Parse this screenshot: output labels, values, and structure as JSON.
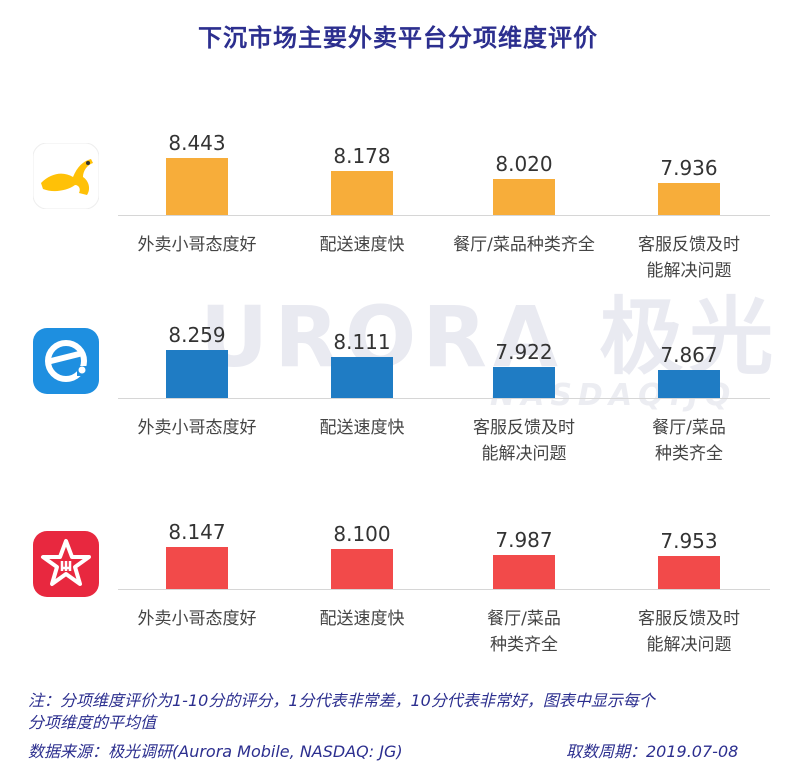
{
  "title": "下沉市场主要外卖平台分项维度评价",
  "watermark": {
    "main": "URORA 极光",
    "sub": "NASDAQ:JQ"
  },
  "logos": [
    {
      "icon": "kangaroo-icon",
      "color": "#ffc107"
    },
    {
      "icon": "e-icon",
      "color": "#1e8fe0"
    },
    {
      "icon": "star-fork-icon",
      "color": "#e8283f"
    }
  ],
  "chart_data": [
    {
      "type": "bar",
      "platform_icon": "kangaroo-icon",
      "color": "#f7ad3a",
      "categories": [
        "外卖小哥态度好",
        "配送速度快",
        "餐厅/菜品种类齐全",
        "客服反馈及时能解决问题"
      ],
      "category_lines": [
        [
          "外卖小哥态度好"
        ],
        [
          "配送速度快"
        ],
        [
          "餐厅/菜品种类齐全"
        ],
        [
          "客服反馈及时",
          "能解决问题"
        ]
      ],
      "values": [
        8.443,
        8.178,
        8.02,
        7.936
      ],
      "value_labels": [
        "8.443",
        "8.178",
        "8.020",
        "7.936"
      ]
    },
    {
      "type": "bar",
      "platform_icon": "e-icon",
      "color": "#1f7cc4",
      "categories": [
        "外卖小哥态度好",
        "配送速度快",
        "客服反馈及时能解决问题",
        "餐厅/菜品种类齐全"
      ],
      "category_lines": [
        [
          "外卖小哥态度好"
        ],
        [
          "配送速度快"
        ],
        [
          "客服反馈及时",
          "能解决问题"
        ],
        [
          "餐厅/菜品",
          "种类齐全"
        ]
      ],
      "values": [
        8.259,
        8.111,
        7.922,
        7.867
      ],
      "value_labels": [
        "8.259",
        "8.111",
        "7.922",
        "7.867"
      ]
    },
    {
      "type": "bar",
      "platform_icon": "star-fork-icon",
      "color": "#f24a4a",
      "categories": [
        "外卖小哥态度好",
        "配送速度快",
        "餐厅/菜品种类齐全",
        "客服反馈及时能解决问题"
      ],
      "category_lines": [
        [
          "外卖小哥态度好"
        ],
        [
          "配送速度快"
        ],
        [
          "餐厅/菜品",
          "种类齐全"
        ],
        [
          "客服反馈及时",
          "能解决问题"
        ]
      ],
      "values": [
        8.147,
        8.1,
        7.987,
        7.953
      ],
      "value_labels": [
        "8.147",
        "8.100",
        "7.987",
        "7.953"
      ]
    }
  ],
  "note": {
    "line1": "注：分项维度评价为1-10分的评分，1分代表非常差，10分代表非常好，图表中显示每个",
    "line2": "分项维度的平均值"
  },
  "source": "数据来源：极光调研(Aurora Mobile, NASDAQ: JG)",
  "period": "取数周期：2019.07-08"
}
